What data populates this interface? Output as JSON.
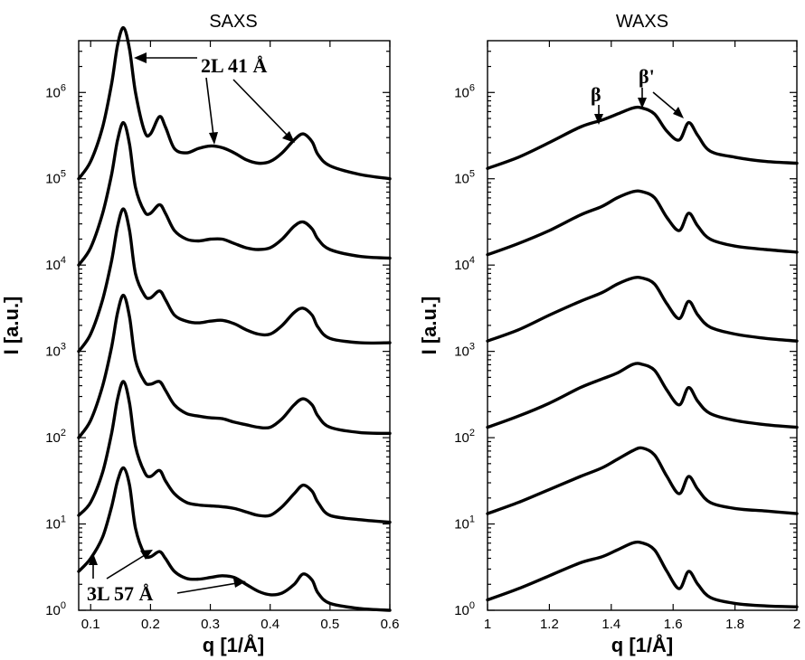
{
  "chart_data": [
    {
      "type": "line",
      "title": "SAXS",
      "xlabel": "q [1/Å]",
      "ylabel": "I [a.u.]",
      "xlim": [
        0.08,
        0.6
      ],
      "ylim_log10": [
        0,
        6.6
      ],
      "y_scale": "log",
      "x_ticks": [
        "0.1",
        "0.2",
        "0.3",
        "0.4",
        "0.5",
        "0.6"
      ],
      "x_tick_values": [
        0.1,
        0.2,
        0.3,
        0.4,
        0.5,
        0.6
      ],
      "y_ticks": [
        {
          "base": "10",
          "exp": "0",
          "value": 0
        },
        {
          "base": "10",
          "exp": "1",
          "value": 1
        },
        {
          "base": "10",
          "exp": "2",
          "value": 2
        },
        {
          "base": "10",
          "exp": "3",
          "value": 3
        },
        {
          "base": "10",
          "exp": "4",
          "value": 4
        },
        {
          "base": "10",
          "exp": "5",
          "value": 5
        },
        {
          "base": "10",
          "exp": "6",
          "value": 6
        }
      ],
      "series": [
        {
          "x": [
            0.08,
            0.1,
            0.12,
            0.135,
            0.145,
            0.155,
            0.165,
            0.175,
            0.19,
            0.2,
            0.215,
            0.225,
            0.24,
            0.26,
            0.28,
            0.3,
            0.32,
            0.34,
            0.36,
            0.38,
            0.4,
            0.42,
            0.44,
            0.455,
            0.47,
            0.48,
            0.5,
            0.55,
            0.6
          ],
          "log10_I": [
            0.45,
            0.6,
            0.85,
            1.2,
            1.5,
            1.65,
            1.45,
            0.95,
            0.65,
            0.62,
            0.68,
            0.6,
            0.45,
            0.37,
            0.36,
            0.38,
            0.4,
            0.38,
            0.3,
            0.22,
            0.18,
            0.2,
            0.3,
            0.42,
            0.35,
            0.2,
            0.08,
            0.02,
            0.0
          ]
        },
        {
          "x": [
            0.08,
            0.1,
            0.12,
            0.135,
            0.145,
            0.155,
            0.165,
            0.175,
            0.19,
            0.2,
            0.215,
            0.225,
            0.24,
            0.26,
            0.28,
            0.3,
            0.32,
            0.34,
            0.36,
            0.38,
            0.4,
            0.42,
            0.44,
            0.455,
            0.47,
            0.48,
            0.5,
            0.55,
            0.6
          ],
          "log10_I": [
            1.1,
            1.25,
            1.6,
            2.05,
            2.45,
            2.65,
            2.4,
            1.9,
            1.6,
            1.55,
            1.62,
            1.5,
            1.35,
            1.25,
            1.22,
            1.21,
            1.2,
            1.18,
            1.14,
            1.1,
            1.1,
            1.2,
            1.35,
            1.45,
            1.38,
            1.25,
            1.1,
            1.05,
            1.02
          ]
        },
        {
          "x": [
            0.08,
            0.1,
            0.12,
            0.135,
            0.145,
            0.155,
            0.165,
            0.175,
            0.19,
            0.2,
            0.215,
            0.225,
            0.24,
            0.26,
            0.28,
            0.3,
            0.32,
            0.34,
            0.36,
            0.38,
            0.4,
            0.42,
            0.44,
            0.455,
            0.47,
            0.48,
            0.5,
            0.55,
            0.6
          ],
          "log10_I": [
            2.0,
            2.2,
            2.6,
            3.05,
            3.45,
            3.65,
            3.4,
            2.9,
            2.65,
            2.62,
            2.65,
            2.55,
            2.38,
            2.28,
            2.25,
            2.23,
            2.22,
            2.18,
            2.15,
            2.12,
            2.12,
            2.22,
            2.38,
            2.45,
            2.38,
            2.25,
            2.12,
            2.06,
            2.05
          ]
        },
        {
          "x": [
            0.08,
            0.1,
            0.12,
            0.135,
            0.145,
            0.155,
            0.165,
            0.175,
            0.19,
            0.2,
            0.215,
            0.225,
            0.24,
            0.26,
            0.28,
            0.3,
            0.32,
            0.34,
            0.36,
            0.38,
            0.4,
            0.42,
            0.44,
            0.455,
            0.47,
            0.48,
            0.5,
            0.55,
            0.6
          ],
          "log10_I": [
            3.0,
            3.2,
            3.6,
            4.05,
            4.45,
            4.65,
            4.4,
            3.9,
            3.65,
            3.62,
            3.7,
            3.6,
            3.42,
            3.35,
            3.33,
            3.35,
            3.36,
            3.32,
            3.25,
            3.2,
            3.2,
            3.3,
            3.45,
            3.5,
            3.42,
            3.28,
            3.15,
            3.1,
            3.1
          ]
        },
        {
          "x": [
            0.08,
            0.1,
            0.12,
            0.135,
            0.145,
            0.155,
            0.165,
            0.175,
            0.19,
            0.2,
            0.215,
            0.225,
            0.24,
            0.26,
            0.28,
            0.3,
            0.32,
            0.34,
            0.36,
            0.38,
            0.4,
            0.42,
            0.44,
            0.455,
            0.47,
            0.48,
            0.5,
            0.55,
            0.6
          ],
          "log10_I": [
            4.0,
            4.2,
            4.6,
            5.05,
            5.45,
            5.65,
            5.4,
            4.9,
            4.62,
            4.6,
            4.7,
            4.6,
            4.4,
            4.3,
            4.28,
            4.3,
            4.3,
            4.25,
            4.2,
            4.18,
            4.2,
            4.3,
            4.45,
            4.5,
            4.42,
            4.3,
            4.18,
            4.1,
            4.08
          ]
        },
        {
          "x": [
            0.08,
            0.1,
            0.12,
            0.135,
            0.145,
            0.155,
            0.165,
            0.175,
            0.19,
            0.2,
            0.215,
            0.225,
            0.24,
            0.26,
            0.28,
            0.3,
            0.32,
            0.34,
            0.36,
            0.38,
            0.4,
            0.42,
            0.44,
            0.455,
            0.47,
            0.48,
            0.5,
            0.55,
            0.6
          ],
          "log10_I": [
            5.0,
            5.2,
            5.6,
            6.1,
            6.55,
            6.75,
            6.5,
            6.0,
            5.55,
            5.52,
            5.72,
            5.6,
            5.35,
            5.3,
            5.35,
            5.38,
            5.36,
            5.3,
            5.22,
            5.18,
            5.2,
            5.3,
            5.45,
            5.52,
            5.43,
            5.28,
            5.15,
            5.05,
            5.0
          ]
        }
      ],
      "annotations": [
        {
          "text": "2L 41 Å"
        },
        {
          "text": "3L 57 Å"
        }
      ]
    },
    {
      "type": "line",
      "title": "WAXS",
      "xlabel": "q [1/Å]",
      "ylabel": "I [a.u.]",
      "xlim": [
        1.0,
        2.0
      ],
      "ylim_log10": [
        0,
        6.6
      ],
      "y_scale": "log",
      "x_ticks": [
        "1",
        "1.2",
        "1.4",
        "1.6",
        "1.8",
        "2"
      ],
      "x_tick_values": [
        1.0,
        1.2,
        1.4,
        1.6,
        1.8,
        2.0
      ],
      "y_ticks": [
        {
          "base": "10",
          "exp": "0",
          "value": 0
        },
        {
          "base": "10",
          "exp": "1",
          "value": 1
        },
        {
          "base": "10",
          "exp": "2",
          "value": 2
        },
        {
          "base": "10",
          "exp": "3",
          "value": 3
        },
        {
          "base": "10",
          "exp": "4",
          "value": 4
        },
        {
          "base": "10",
          "exp": "5",
          "value": 5
        },
        {
          "base": "10",
          "exp": "6",
          "value": 6
        }
      ],
      "series": [
        {
          "x": [
            1.0,
            1.1,
            1.2,
            1.3,
            1.37,
            1.42,
            1.47,
            1.5,
            1.54,
            1.58,
            1.62,
            1.65,
            1.68,
            1.72,
            1.8,
            1.9,
            2.0
          ],
          "log10_I": [
            0.12,
            0.25,
            0.4,
            0.55,
            0.62,
            0.7,
            0.78,
            0.78,
            0.7,
            0.45,
            0.25,
            0.45,
            0.3,
            0.15,
            0.08,
            0.05,
            0.04
          ]
        },
        {
          "x": [
            1.0,
            1.1,
            1.2,
            1.3,
            1.37,
            1.42,
            1.47,
            1.5,
            1.54,
            1.58,
            1.62,
            1.65,
            1.68,
            1.72,
            1.8,
            1.9,
            2.0
          ],
          "log10_I": [
            1.12,
            1.25,
            1.4,
            1.55,
            1.65,
            1.75,
            1.85,
            1.88,
            1.8,
            1.55,
            1.35,
            1.55,
            1.4,
            1.25,
            1.18,
            1.15,
            1.12
          ]
        },
        {
          "x": [
            1.0,
            1.1,
            1.2,
            1.3,
            1.37,
            1.42,
            1.47,
            1.5,
            1.54,
            1.58,
            1.62,
            1.65,
            1.68,
            1.72,
            1.8,
            1.9,
            2.0
          ],
          "log10_I": [
            2.12,
            2.25,
            2.4,
            2.58,
            2.68,
            2.75,
            2.85,
            2.85,
            2.78,
            2.55,
            2.38,
            2.58,
            2.42,
            2.28,
            2.2,
            2.15,
            2.12
          ]
        },
        {
          "x": [
            1.0,
            1.1,
            1.2,
            1.3,
            1.37,
            1.42,
            1.47,
            1.5,
            1.54,
            1.58,
            1.62,
            1.65,
            1.68,
            1.72,
            1.8,
            1.9,
            2.0
          ],
          "log10_I": [
            3.12,
            3.25,
            3.42,
            3.58,
            3.68,
            3.78,
            3.85,
            3.85,
            3.78,
            3.55,
            3.38,
            3.58,
            3.42,
            3.28,
            3.2,
            3.15,
            3.12
          ]
        },
        {
          "x": [
            1.0,
            1.1,
            1.2,
            1.3,
            1.37,
            1.42,
            1.47,
            1.5,
            1.54,
            1.58,
            1.62,
            1.65,
            1.68,
            1.72,
            1.8,
            1.9,
            2.0
          ],
          "log10_I": [
            4.12,
            4.25,
            4.4,
            4.58,
            4.68,
            4.78,
            4.85,
            4.85,
            4.78,
            4.55,
            4.4,
            4.6,
            4.45,
            4.3,
            4.22,
            4.18,
            4.15
          ]
        },
        {
          "x": [
            1.0,
            1.1,
            1.2,
            1.3,
            1.37,
            1.42,
            1.47,
            1.5,
            1.54,
            1.58,
            1.62,
            1.65,
            1.68,
            1.72,
            1.8,
            1.9,
            2.0
          ],
          "log10_I": [
            5.12,
            5.25,
            5.42,
            5.6,
            5.68,
            5.75,
            5.82,
            5.82,
            5.75,
            5.55,
            5.45,
            5.65,
            5.5,
            5.32,
            5.25,
            5.2,
            5.18
          ]
        }
      ],
      "annotations": [
        {
          "text": "β"
        },
        {
          "text": "β'"
        }
      ]
    }
  ]
}
